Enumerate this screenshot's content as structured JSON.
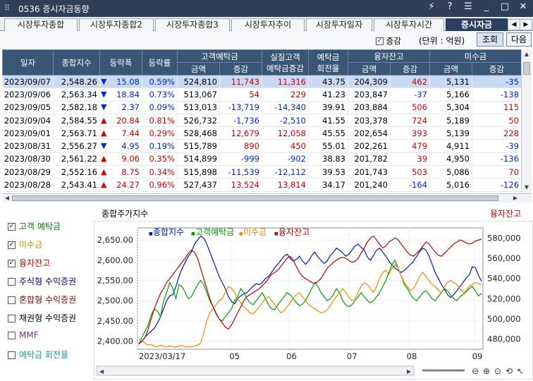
{
  "window": {
    "title": "0536 증시자금동향",
    "controls": [
      "⚡",
      "?",
      "☰",
      "_",
      "□",
      "✕"
    ]
  },
  "tabs": [
    {
      "label": "시장투자종합",
      "active": false
    },
    {
      "label": "시장투자종합2",
      "active": false
    },
    {
      "label": "시장투자종합3",
      "active": false
    },
    {
      "label": "시장투자추이",
      "active": false
    },
    {
      "label": "시장투자일자",
      "active": false
    },
    {
      "label": "시장투자시간",
      "active": false
    },
    {
      "label": "증시자금",
      "active": true
    }
  ],
  "options": {
    "increase_label": "증감",
    "increase_checked": true,
    "unit_label": "(단위 : 억원)",
    "query_button": "조회",
    "next_button": "다음"
  },
  "table": {
    "headers_top": [
      "일자",
      "종합지수",
      "등락폭",
      "등락률",
      "고객예탁금",
      "실질고객\n예탁금증감",
      "예탁금\n회전율",
      "융자잔고",
      "미수금"
    ],
    "headers_sub": [
      "금액",
      "증감",
      "금액",
      "증감",
      "금액",
      "증감"
    ],
    "rows": [
      {
        "date": "2023/09/07",
        "index": "2,548.26",
        "dir": "down",
        "change": "15.08",
        "rate": "0.59%",
        "dep_amt": "524,810",
        "dep_chg": "11,743",
        "real_chg": "11,316",
        "turnover": "43.75",
        "loan_amt": "204,309",
        "loan_chg": "462",
        "unpaid_amt": "5,131",
        "unpaid_chg": "-35"
      },
      {
        "date": "2023/09/06",
        "index": "2,563.34",
        "dir": "down",
        "change": "18.84",
        "rate": "0.73%",
        "dep_amt": "513,067",
        "dep_chg": "54",
        "real_chg": "229",
        "turnover": "41.23",
        "loan_amt": "203,847",
        "loan_chg": "-37",
        "unpaid_amt": "5,166",
        "unpaid_chg": "-138"
      },
      {
        "date": "2023/09/05",
        "index": "2,582.18",
        "dir": "down",
        "change": "2.37",
        "rate": "0.09%",
        "dep_amt": "513,013",
        "dep_chg": "-13,719",
        "real_chg": "-14,340",
        "turnover": "39.91",
        "loan_amt": "203,884",
        "loan_chg": "506",
        "unpaid_amt": "5,304",
        "unpaid_chg": "115"
      },
      {
        "date": "2023/09/04",
        "index": "2,584.55",
        "dir": "up",
        "change": "20.84",
        "rate": "0.81%",
        "dep_amt": "526,732",
        "dep_chg": "-1,736",
        "real_chg": "-2,510",
        "turnover": "41.55",
        "loan_amt": "203,378",
        "loan_chg": "724",
        "unpaid_amt": "5,189",
        "unpaid_chg": "50"
      },
      {
        "date": "2023/09/01",
        "index": "2,563.71",
        "dir": "up",
        "change": "7.44",
        "rate": "0.29%",
        "dep_amt": "528,468",
        "dep_chg": "12,679",
        "real_chg": "12,058",
        "turnover": "45.55",
        "loan_amt": "202,654",
        "loan_chg": "393",
        "unpaid_amt": "5,139",
        "unpaid_chg": "228"
      },
      {
        "date": "2023/08/31",
        "index": "2,556.27",
        "dir": "down",
        "change": "4.95",
        "rate": "0.19%",
        "dep_amt": "515,789",
        "dep_chg": "890",
        "real_chg": "450",
        "turnover": "55.01",
        "loan_amt": "202,261",
        "loan_chg": "479",
        "unpaid_amt": "4,911",
        "unpaid_chg": "-39"
      },
      {
        "date": "2023/08/30",
        "index": "2,561.22",
        "dir": "up",
        "change": "9.06",
        "rate": "0.35%",
        "dep_amt": "514,899",
        "dep_chg": "-999",
        "real_chg": "-902",
        "turnover": "38.83",
        "loan_amt": "201,782",
        "loan_chg": "39",
        "unpaid_amt": "4,950",
        "unpaid_chg": "-136"
      },
      {
        "date": "2023/08/29",
        "index": "2,552.16",
        "dir": "up",
        "change": "8.75",
        "rate": "0.34%",
        "dep_amt": "515,898",
        "dep_chg": "-11,539",
        "real_chg": "-12,112",
        "turnover": "39.53",
        "loan_amt": "201,743",
        "loan_chg": "503",
        "unpaid_amt": "5,086",
        "unpaid_chg": "70"
      },
      {
        "date": "2023/08/28",
        "index": "2,543.41",
        "dir": "up",
        "change": "24.27",
        "rate": "0.96%",
        "dep_amt": "527,437",
        "dep_chg": "13,524",
        "real_chg": "13,814",
        "turnover": "34.17",
        "loan_amt": "201,240",
        "loan_chg": "-164",
        "unpaid_amt": "5,016",
        "unpaid_chg": "-126"
      }
    ]
  },
  "series_panel": {
    "items": [
      {
        "label": "고객 예탁금",
        "checked": true,
        "color": "#008000"
      },
      {
        "label": "미수금",
        "checked": true,
        "color": "#e08a00"
      },
      {
        "label": "융자잔고",
        "checked": true,
        "color": "#c00000"
      },
      {
        "label": "주식형 수익증권",
        "checked": false,
        "color": "#000080"
      },
      {
        "label": "혼합형 수익증권",
        "checked": false,
        "color": "#8b0000"
      },
      {
        "label": "채권형 수익증권",
        "checked": false,
        "color": "#000000"
      },
      {
        "label": "MMF",
        "checked": false,
        "color": "#7b2fa0"
      },
      {
        "label": "예탁금 회전율",
        "checked": false,
        "color": "#1a9aa0"
      }
    ]
  },
  "chart_header": {
    "left_title": "종합주가지수",
    "right_title": "융자잔고"
  },
  "chart_data": {
    "type": "line",
    "x_labels": [
      "2023/03/17",
      "05",
      "06",
      "07",
      "08",
      "09"
    ],
    "left_axis": {
      "ticks": [
        "2,400.00",
        "2,450.00",
        "2,500.00",
        "2,550.00",
        "2,600.00",
        "2,650.00"
      ],
      "ylim": [
        2380,
        2680
      ]
    },
    "right_axis": {
      "ticks": [
        "480,000",
        "500,000",
        "520,000",
        "540,000",
        "560,000",
        "580,000"
      ],
      "ylim": [
        470000,
        590000
      ]
    },
    "series": [
      {
        "name": "종합지수",
        "color": "#0018c8",
        "axis": "left",
        "values": [
          2395,
          2400,
          2410,
          2418,
          2425,
          2432,
          2445,
          2460,
          2480,
          2500,
          2512,
          2515,
          2535,
          2560,
          2580,
          2595,
          2610,
          2620,
          2640,
          2650,
          2660,
          2655,
          2640,
          2620,
          2600,
          2580,
          2560,
          2545,
          2530,
          2510,
          2498,
          2492,
          2505,
          2512,
          2518,
          2520,
          2528,
          2535,
          2542,
          2540,
          2545,
          2555,
          2560,
          2570,
          2582,
          2590,
          2600,
          2610,
          2615,
          2605,
          2598,
          2602,
          2610,
          2598,
          2590,
          2598,
          2612,
          2620,
          2608,
          2600,
          2592,
          2598,
          2612,
          2620,
          2630,
          2625,
          2618,
          2610,
          2615,
          2625,
          2635,
          2640,
          2632,
          2625,
          2608,
          2600,
          2612,
          2625,
          2630,
          2620,
          2610,
          2598,
          2588,
          2580,
          2575,
          2570,
          2575,
          2582,
          2590,
          2598,
          2610,
          2622,
          2630,
          2625,
          2610,
          2590,
          2570,
          2555,
          2540,
          2528,
          2515,
          2508,
          2515,
          2525,
          2535,
          2545,
          2556,
          2563,
          2584,
          2582,
          2563,
          2548
        ]
      },
      {
        "name": "고객예탁금",
        "color": "#00a000",
        "axis": "left",
        "values": [
          2392,
          2410,
          2425,
          2440,
          2465,
          2480,
          2475,
          2460,
          2500,
          2520,
          2545,
          2530,
          2505,
          2540,
          2535,
          2520,
          2505,
          2510,
          2525,
          2540,
          2550,
          2540,
          2520,
          2500,
          2485,
          2470,
          2455,
          2450,
          2460,
          2470,
          2480,
          2500,
          2510,
          2530,
          2520,
          2505,
          2495,
          2490,
          2500,
          2510,
          2520,
          2505,
          2490,
          2480,
          2478,
          2490,
          2500,
          2510,
          2520,
          2515,
          2505,
          2495,
          2488,
          2492,
          2500,
          2515,
          2530,
          2545,
          2535,
          2520,
          2510,
          2500,
          2505,
          2515,
          2530,
          2520,
          2500,
          2490,
          2485,
          2490,
          2500,
          2510,
          2520,
          2510,
          2500,
          2495,
          2500,
          2510,
          2520,
          2535,
          2550,
          2570,
          2590,
          2600,
          2580,
          2560,
          2540,
          2530,
          2515,
          2505,
          2500,
          2510,
          2520,
          2525,
          2515,
          2505,
          2500,
          2510,
          2520,
          2530,
          2525,
          2515,
          2505,
          2500,
          2510,
          2515,
          2522,
          2530,
          2535,
          2525,
          2512,
          2518
        ]
      },
      {
        "name": "미수금",
        "color": "#f08a00",
        "axis": "left",
        "values": [
          2405,
          2400,
          2395,
          2390,
          2392,
          2388,
          2386,
          2390,
          2388,
          2385,
          2388,
          2386,
          2385,
          2388,
          2390,
          2385,
          2387,
          2386,
          2388,
          2390,
          2395,
          2420,
          2450,
          2470,
          2480,
          2490,
          2500,
          2505,
          2520,
          2535,
          2530,
          2520,
          2505,
          2495,
          2485,
          2478,
          2470,
          2468,
          2475,
          2485,
          2495,
          2505,
          2510,
          2500,
          2490,
          2480,
          2470,
          2475,
          2485,
          2495,
          2505,
          2515,
          2520,
          2510,
          2500,
          2490,
          2485,
          2480,
          2475,
          2470,
          2472,
          2478,
          2488,
          2500,
          2510,
          2520,
          2530,
          2520,
          2510,
          2500,
          2505,
          2520,
          2535,
          2545,
          2540,
          2530,
          2520,
          2535,
          2555,
          2570,
          2575,
          2565,
          2580,
          2590,
          2580,
          2560,
          2545,
          2535,
          2525,
          2530,
          2545,
          2560,
          2570,
          2560,
          2550,
          2540,
          2535,
          2525,
          2520,
          2535,
          2545,
          2550,
          2545,
          2540,
          2530,
          2520,
          2525,
          2535,
          2540,
          2545,
          2542,
          2540
        ]
      },
      {
        "name": "융자잔고",
        "color": "#c00000",
        "axis": "right",
        "values": [
          475000,
          478000,
          482000,
          490000,
          500000,
          510000,
          518000,
          525000,
          530000,
          536000,
          540000,
          544000,
          548000,
          552000,
          556000,
          560000,
          565000,
          568000,
          566000,
          560000,
          550000,
          540000,
          530000,
          520000,
          512000,
          505000,
          500000,
          496000,
          492000,
          490000,
          494000,
          500000,
          506000,
          512000,
          518000,
          522000,
          524000,
          526000,
          528000,
          530000,
          533000,
          536000,
          540000,
          544000,
          546000,
          548000,
          552000,
          556000,
          560000,
          562000,
          558000,
          552000,
          546000,
          542000,
          540000,
          538000,
          536000,
          535000,
          537000,
          540000,
          545000,
          550000,
          553000,
          556000,
          558000,
          560000,
          561000,
          560000,
          558000,
          556000,
          557000,
          560000,
          565000,
          570000,
          576000,
          580000,
          582000,
          578000,
          574000,
          570000,
          572000,
          576000,
          578000,
          580000,
          578000,
          574000,
          570000,
          566000,
          563000,
          562000,
          565000,
          568000,
          572000,
          576000,
          574000,
          570000,
          566000,
          563000,
          562000,
          565000,
          568000,
          571000,
          574000,
          576000,
          578000,
          577000,
          575000,
          574000,
          575000,
          577000,
          578000,
          579000
        ]
      }
    ]
  }
}
